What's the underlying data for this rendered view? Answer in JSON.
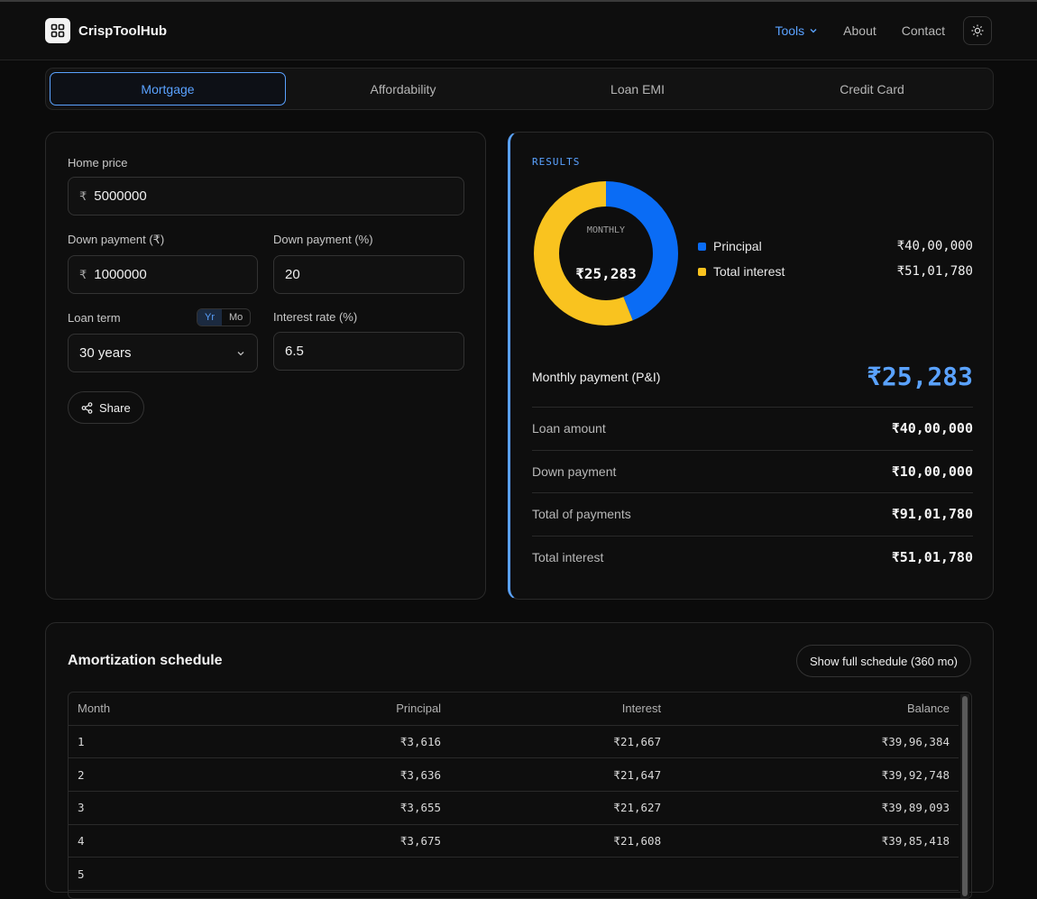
{
  "brand": {
    "name": "CrispToolHub"
  },
  "nav": {
    "tools": "Tools",
    "about": "About",
    "contact": "Contact"
  },
  "tabs": [
    "Mortgage",
    "Affordability",
    "Loan EMI",
    "Credit Card"
  ],
  "form": {
    "home_price_label": "Home price",
    "currency": "₹",
    "home_price": "5000000",
    "down_amount_label": "Down payment (₹)",
    "down_amount": "1000000",
    "down_pct_label": "Down payment (%)",
    "down_pct": "20",
    "term_label": "Loan term",
    "term_toggle": [
      "Yr",
      "Mo"
    ],
    "term_value": "30 years",
    "rate_label": "Interest rate (%)",
    "rate": "6.5",
    "share": "Share"
  },
  "results": {
    "tag": "RESULTS",
    "donut_label": "MONTHLY",
    "donut_value": "₹25,283",
    "legend": [
      {
        "name": "Principal",
        "value": "₹40,00,000",
        "color": "#0a6cf5",
        "share": 0.4392
      },
      {
        "name": "Total interest",
        "value": "₹51,01,780",
        "color": "#f9c31f",
        "share": 0.5608
      }
    ],
    "monthly_label": "Monthly payment (P&I)",
    "monthly_value": "₹25,283",
    "stats": [
      {
        "k": "Loan amount",
        "v": "₹40,00,000"
      },
      {
        "k": "Down payment",
        "v": "₹10,00,000"
      },
      {
        "k": "Total of payments",
        "v": "₹91,01,780"
      },
      {
        "k": "Total interest",
        "v": "₹51,01,780"
      }
    ]
  },
  "amortization": {
    "title": "Amortization schedule",
    "full_button": "Show full schedule (360 mo)",
    "columns": [
      "Month",
      "Principal",
      "Interest",
      "Balance"
    ],
    "rows": [
      [
        "1",
        "₹3,616",
        "₹21,667",
        "₹39,96,384"
      ],
      [
        "2",
        "₹3,636",
        "₹21,647",
        "₹39,92,748"
      ],
      [
        "3",
        "₹3,655",
        "₹21,627",
        "₹39,89,093"
      ],
      [
        "4",
        "₹3,675",
        "₹21,608",
        "₹39,85,418"
      ],
      [
        "5",
        "",
        "",
        ""
      ]
    ]
  }
}
